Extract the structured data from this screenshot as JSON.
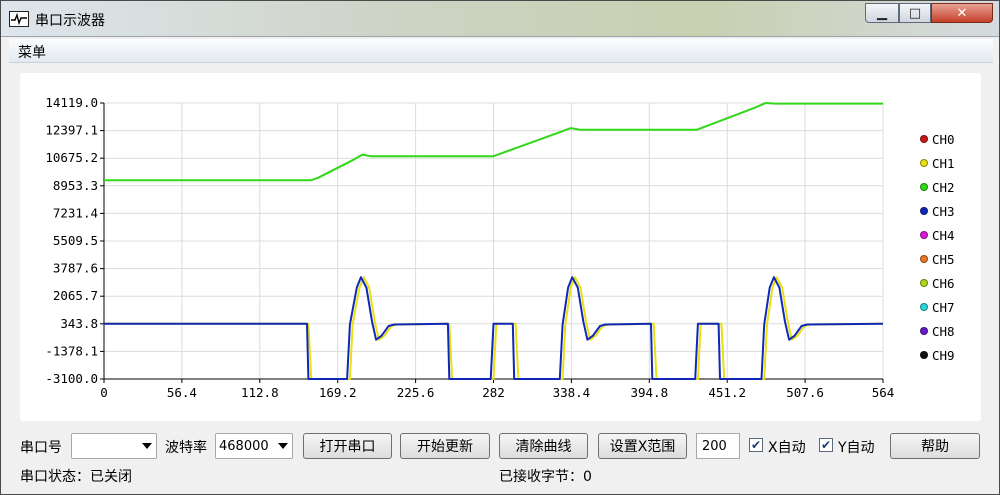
{
  "window": {
    "title": "串口示波器",
    "controls": {
      "minimize": "▁",
      "maximize": "□",
      "close": "✕"
    }
  },
  "menu": {
    "label": "菜单"
  },
  "chart_data": {
    "type": "line",
    "x_ticks": [
      "0",
      "56.4",
      "112.8",
      "169.2",
      "225.6",
      "282",
      "338.4",
      "394.8",
      "451.2",
      "507.6",
      "564"
    ],
    "y_ticks": [
      "14119.0",
      "12397.1",
      "10675.2",
      "8953.3",
      "7231.4",
      "5509.5",
      "3787.6",
      "2065.7",
      "343.8",
      "-1378.1",
      "-3100.0"
    ],
    "xlim": [
      0,
      564
    ],
    "ylim": [
      -3100.0,
      14119.0
    ],
    "grid": true,
    "legend_position": "right",
    "series": [
      {
        "name": "CH0",
        "color": "#c81818",
        "points": []
      },
      {
        "name": "CH1",
        "color": "#e8e010",
        "points": [
          [
            0,
            343.8
          ],
          [
            148,
            343.8
          ],
          [
            150,
            -3100
          ],
          [
            178,
            -3100
          ],
          [
            180,
            300
          ],
          [
            185,
            2600
          ],
          [
            188,
            3250
          ],
          [
            192,
            2600
          ],
          [
            196,
            500
          ],
          [
            199,
            -650
          ],
          [
            203,
            -400
          ],
          [
            208,
            200
          ],
          [
            212,
            300
          ],
          [
            250,
            343.8
          ],
          [
            252,
            -3100
          ],
          [
            282,
            -3100
          ],
          [
            284,
            343.8
          ],
          [
            298,
            343.8
          ],
          [
            300,
            -3100
          ],
          [
            332,
            -3100
          ],
          [
            334,
            300
          ],
          [
            338,
            2600
          ],
          [
            341,
            3250
          ],
          [
            345,
            2600
          ],
          [
            349,
            500
          ],
          [
            352,
            -650
          ],
          [
            356,
            -400
          ],
          [
            361,
            200
          ],
          [
            365,
            300
          ],
          [
            398,
            343.8
          ],
          [
            400,
            -3100
          ],
          [
            430,
            -3100
          ],
          [
            432,
            343.8
          ],
          [
            447,
            343.8
          ],
          [
            449,
            -3100
          ],
          [
            478,
            -3100
          ],
          [
            480,
            300
          ],
          [
            484,
            2600
          ],
          [
            487,
            3250
          ],
          [
            491,
            2600
          ],
          [
            495,
            500
          ],
          [
            498,
            -650
          ],
          [
            502,
            -400
          ],
          [
            507,
            200
          ],
          [
            511,
            300
          ],
          [
            564,
            343.8
          ]
        ]
      },
      {
        "name": "CH2",
        "color": "#30d818",
        "points": [
          [
            0,
            9300
          ],
          [
            150,
            9300
          ],
          [
            155,
            9450
          ],
          [
            180,
            10550
          ],
          [
            187,
            10900
          ],
          [
            193,
            10800
          ],
          [
            250,
            10800
          ],
          [
            282,
            10800
          ],
          [
            290,
            11050
          ],
          [
            330,
            12300
          ],
          [
            338,
            12550
          ],
          [
            345,
            12450
          ],
          [
            400,
            12450
          ],
          [
            429,
            12450
          ],
          [
            437,
            12700
          ],
          [
            472,
            13850
          ],
          [
            479,
            14119
          ],
          [
            486,
            14080
          ],
          [
            564,
            14080
          ]
        ]
      },
      {
        "name": "CH3",
        "color": "#1028b8",
        "points": [
          [
            0,
            343.8
          ],
          [
            147,
            343.8
          ],
          [
            148,
            -3100
          ],
          [
            176,
            -3100
          ],
          [
            178,
            300
          ],
          [
            183,
            2600
          ],
          [
            186,
            3250
          ],
          [
            190,
            2600
          ],
          [
            194,
            500
          ],
          [
            197,
            -650
          ],
          [
            201,
            -400
          ],
          [
            206,
            200
          ],
          [
            210,
            300
          ],
          [
            249,
            343.8
          ],
          [
            250,
            -3100
          ],
          [
            280,
            -3100
          ],
          [
            282,
            343.8
          ],
          [
            296,
            343.8
          ],
          [
            297,
            -3100
          ],
          [
            330,
            -3100
          ],
          [
            332,
            300
          ],
          [
            336,
            2600
          ],
          [
            339,
            3250
          ],
          [
            343,
            2600
          ],
          [
            347,
            500
          ],
          [
            350,
            -650
          ],
          [
            354,
            -400
          ],
          [
            359,
            200
          ],
          [
            363,
            300
          ],
          [
            396,
            343.8
          ],
          [
            397,
            -3100
          ],
          [
            428,
            -3100
          ],
          [
            430,
            343.8
          ],
          [
            445,
            343.8
          ],
          [
            446,
            -3100
          ],
          [
            476,
            -3100
          ],
          [
            478,
            300
          ],
          [
            482,
            2600
          ],
          [
            485,
            3250
          ],
          [
            489,
            2600
          ],
          [
            493,
            500
          ],
          [
            496,
            -650
          ],
          [
            500,
            -400
          ],
          [
            505,
            200
          ],
          [
            509,
            300
          ],
          [
            564,
            343.8
          ]
        ]
      },
      {
        "name": "CH4",
        "color": "#d818d8",
        "points": []
      },
      {
        "name": "CH5",
        "color": "#e87828",
        "points": []
      },
      {
        "name": "CH6",
        "color": "#a8d818",
        "points": []
      },
      {
        "name": "CH7",
        "color": "#28d8d8",
        "points": []
      },
      {
        "name": "CH8",
        "color": "#6818c8",
        "points": []
      },
      {
        "name": "CH9",
        "color": "#101010",
        "points": []
      }
    ]
  },
  "controls": {
    "port_label": "串口号",
    "port_value": "",
    "baud_label": "波特率",
    "baud_value": "468000",
    "open_port_button": "打开串口",
    "start_update_button": "开始更新",
    "clear_curves_button": "清除曲线",
    "set_x_range_button": "设置X范围",
    "x_range_value": "200",
    "x_auto_label": "X自动",
    "x_auto_checked": true,
    "y_auto_label": "Y自动",
    "y_auto_checked": true,
    "help_button": "帮助"
  },
  "status": {
    "port_status": "串口状态：已关闭",
    "bytes_received": "已接收字节：0"
  }
}
